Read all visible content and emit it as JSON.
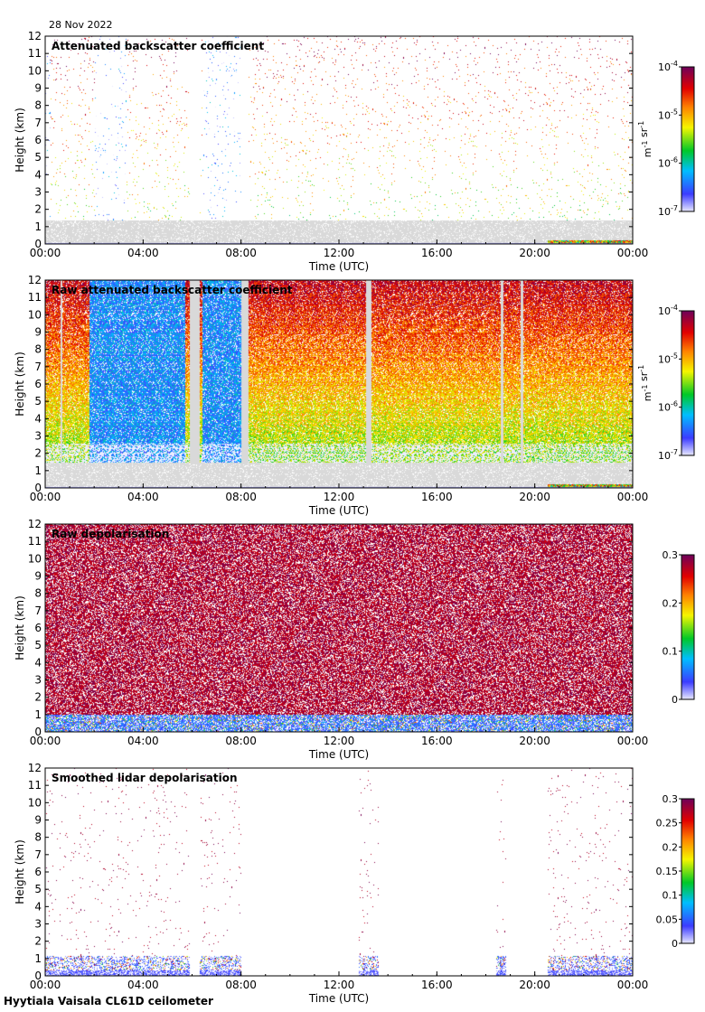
{
  "header": {
    "date": "28 Nov 2022"
  },
  "footer": {
    "site_label": "Hyytiala Vaisala CL61D ceilometer"
  },
  "colors": {
    "no_signal": "#d9d9d9",
    "frame": "#000000",
    "background": "#ffffff"
  },
  "chart_data": [
    {
      "type": "heatmap",
      "title": "Attenuated backscatter coefficient",
      "xlabel": "Time (UTC)",
      "ylabel": "Height (km)",
      "x_ticks": [
        "00:00",
        "04:00",
        "08:00",
        "12:00",
        "16:00",
        "20:00",
        "00:00"
      ],
      "x_range_hours": [
        0,
        24
      ],
      "y_ticks": [
        0,
        1,
        2,
        3,
        4,
        5,
        6,
        7,
        8,
        9,
        10,
        11,
        12
      ],
      "y_range_km": [
        0,
        12
      ],
      "colorbar": {
        "scale": "log",
        "ticks": [
          "10^-4",
          "10^-5",
          "10^-6",
          "10^-7"
        ],
        "range": [
          1e-07,
          0.0001
        ],
        "unit_label": "m^-1 sr^-1",
        "colormap": "rainbow"
      },
      "scene": {
        "style": "sparse",
        "density": 0.2,
        "gray_bottom_km": 1.4,
        "base_level": 0.15,
        "mid_level": 0.85,
        "top_level": 0.92,
        "data_gaps_hours": [
          [
            5.9,
            6.3
          ],
          [
            8.0,
            8.3
          ]
        ],
        "low_level_hours": [
          [
            0,
            0.2
          ],
          [
            2.0,
            3.3
          ],
          [
            6.4,
            8.0
          ]
        ],
        "surface_layer_hours": [
          [
            20.5,
            24
          ]
        ]
      }
    },
    {
      "type": "heatmap",
      "title": "Raw attenuated backscatter coefficient",
      "xlabel": "Time (UTC)",
      "ylabel": "Height (km)",
      "x_ticks": [
        "00:00",
        "04:00",
        "08:00",
        "12:00",
        "16:00",
        "20:00",
        "00:00"
      ],
      "x_range_hours": [
        0,
        24
      ],
      "y_ticks": [
        0,
        1,
        2,
        3,
        4,
        5,
        6,
        7,
        8,
        9,
        10,
        11,
        12
      ],
      "y_range_km": [
        0,
        12
      ],
      "colorbar": {
        "scale": "log",
        "ticks": [
          "10^-4",
          "10^-5",
          "10^-6",
          "10^-7"
        ],
        "range": [
          1e-07,
          0.0001
        ],
        "unit_label": "m^-1 sr^-1",
        "colormap": "rainbow"
      },
      "scene": {
        "style": "dense",
        "density": 0.85,
        "gray_bottom_km": 1.5,
        "base_level": 0.22,
        "mid_level": 0.8,
        "top_level": 0.9,
        "data_gaps_hours": [
          [
            5.9,
            6.3
          ],
          [
            8.0,
            8.3
          ],
          [
            0.6,
            0.7
          ],
          [
            13.1,
            13.3
          ],
          [
            18.6,
            18.7
          ],
          [
            19.4,
            19.5
          ]
        ],
        "low_level_hours": [
          [
            1.8,
            5.7
          ],
          [
            6.4,
            8.0
          ]
        ],
        "surface_layer_hours": [
          [
            20.5,
            24
          ]
        ]
      }
    },
    {
      "type": "heatmap",
      "title": "Raw depolarisation",
      "xlabel": "Time (UTC)",
      "ylabel": "Height (km)",
      "x_ticks": [
        "00:00",
        "04:00",
        "08:00",
        "12:00",
        "16:00",
        "20:00",
        "00:00"
      ],
      "x_range_hours": [
        0,
        24
      ],
      "y_ticks": [
        0,
        1,
        2,
        3,
        4,
        5,
        6,
        7,
        8,
        9,
        10,
        11,
        12
      ],
      "y_range_km": [
        0,
        12
      ],
      "colorbar": {
        "scale": "linear",
        "ticks": [
          "0.3",
          "0.2",
          "0.1",
          "0"
        ],
        "range": [
          0,
          0.3
        ],
        "colormap": "rainbow"
      },
      "scene": {
        "style": "noise",
        "density": 0.72,
        "value_high": 0.3,
        "near_surface_km": 1.0
      }
    },
    {
      "type": "heatmap",
      "title": "Smoothed lidar depolarisation",
      "xlabel": "Time (UTC)",
      "ylabel": "Height (km)",
      "x_ticks": [
        "00:00",
        "04:00",
        "08:00",
        "12:00",
        "16:00",
        "20:00",
        "00:00"
      ],
      "x_range_hours": [
        0,
        24
      ],
      "y_ticks": [
        0,
        1,
        2,
        3,
        4,
        5,
        6,
        7,
        8,
        9,
        10,
        11,
        12
      ],
      "y_range_km": [
        0,
        12
      ],
      "colorbar": {
        "scale": "linear",
        "ticks": [
          "0.3",
          "0.25",
          "0.2",
          "0.15",
          "0.1",
          "0.05",
          "0"
        ],
        "range": [
          0,
          0.3
        ],
        "colormap": "rainbow"
      },
      "scene": {
        "style": "sparse-depol",
        "density": 0.09,
        "value_high": 0.3,
        "near_surface_km": 1.2,
        "data_gaps_hours": [
          [
            5.9,
            6.3
          ],
          [
            8.0,
            8.3
          ],
          [
            8.3,
            12.8
          ],
          [
            13.6,
            18.4
          ],
          [
            18.8,
            20.5
          ]
        ]
      }
    }
  ]
}
